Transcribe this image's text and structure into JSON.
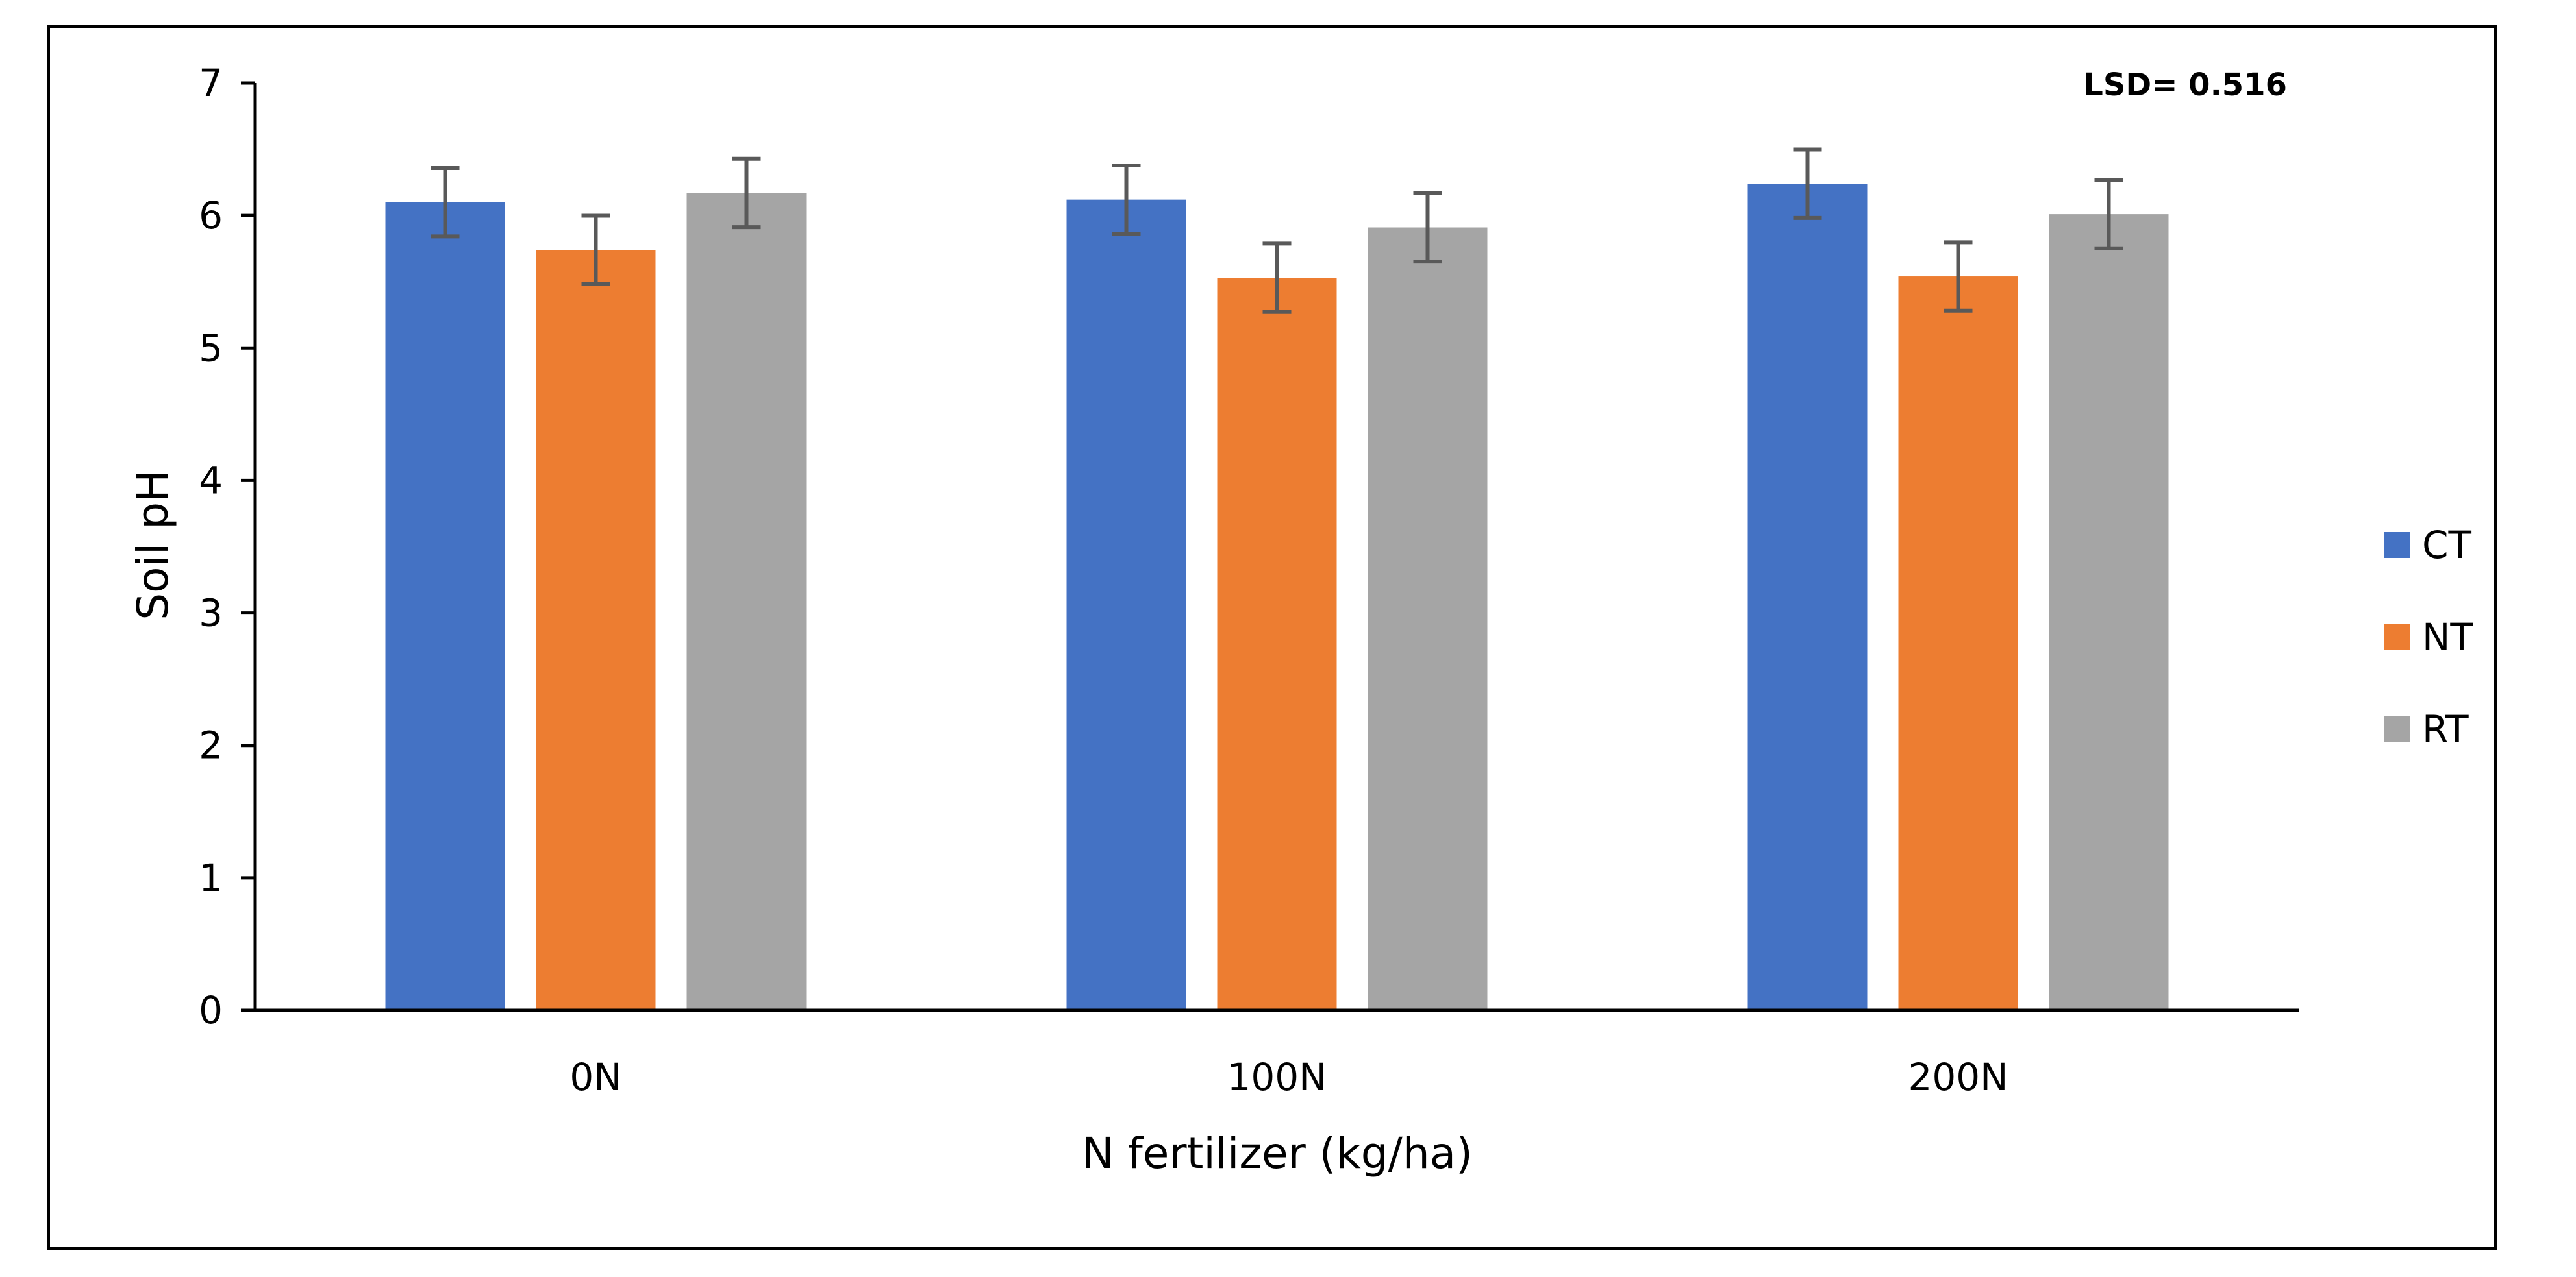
{
  "chart_data": {
    "type": "bar",
    "title": "",
    "xlabel": "N fertilizer (kg/ha)",
    "ylabel": "Soil pH",
    "ylim": [
      0,
      7
    ],
    "yticks": [
      0,
      1,
      2,
      3,
      4,
      5,
      6,
      7
    ],
    "categories": [
      "0N",
      "100N",
      "200N"
    ],
    "series": [
      {
        "name": "CT",
        "color": "#4472C4",
        "values": [
          6.1,
          6.12,
          6.24
        ],
        "errors": [
          0.258,
          0.258,
          0.258
        ]
      },
      {
        "name": "NT",
        "color": "#ED7D31",
        "values": [
          5.74,
          5.53,
          5.54
        ],
        "errors": [
          0.258,
          0.258,
          0.258
        ]
      },
      {
        "name": "RT",
        "color": "#A5A5A5",
        "values": [
          6.17,
          5.91,
          6.01
        ],
        "errors": [
          0.258,
          0.258,
          0.258
        ]
      }
    ],
    "annotation": "LSD= 0.516",
    "legend_position": "right",
    "grid": false
  }
}
